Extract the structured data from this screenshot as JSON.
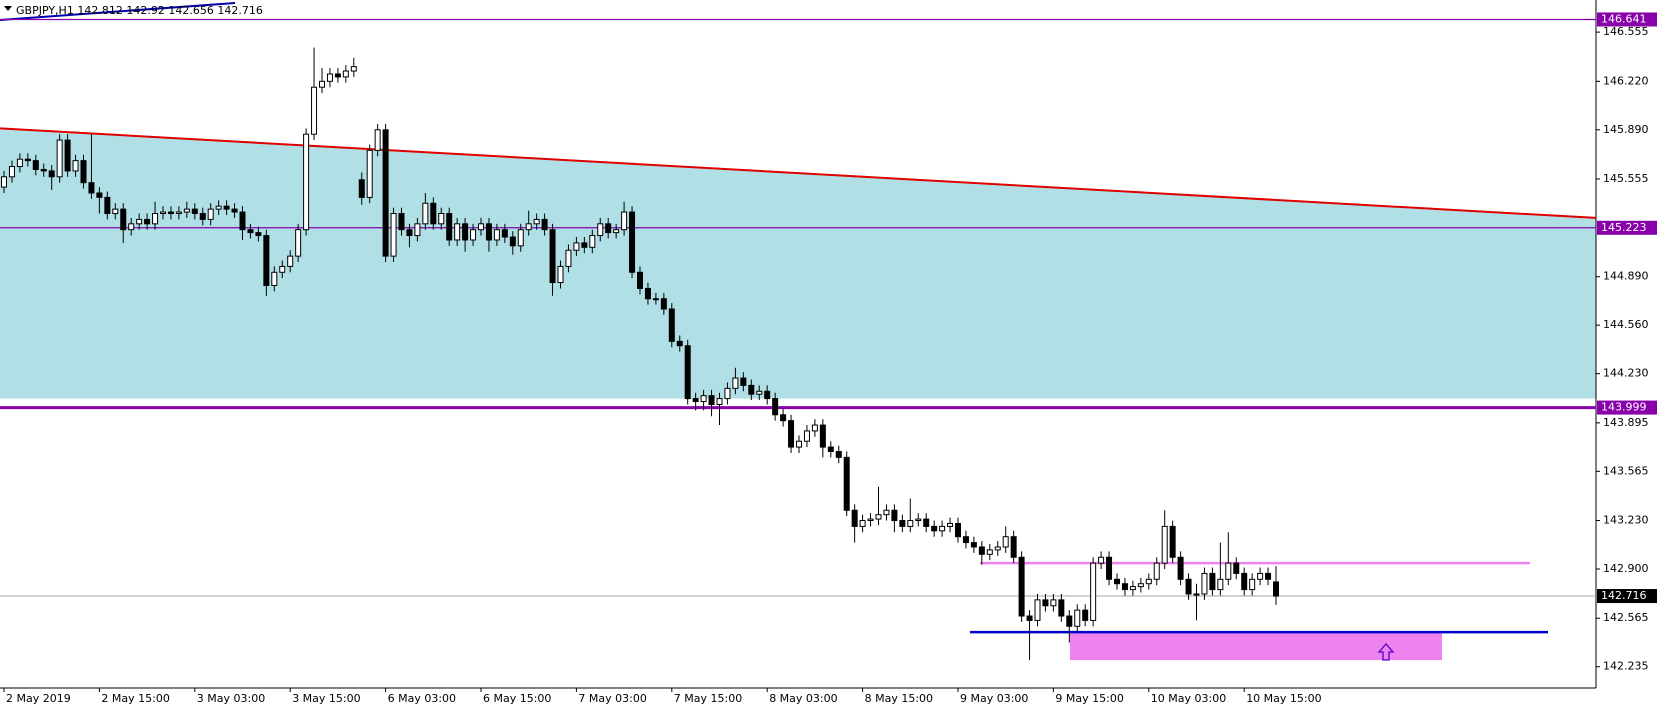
{
  "chart_data": {
    "type": "candlestick",
    "symbol": "GBPJPY,H1",
    "ylim": [
      142.09,
      146.76
    ],
    "yticks": [
      146.555,
      {
        "value": 146.22,
        "label": "146.220"
      },
      {
        "value": 145.89,
        "label": "145.890"
      },
      145.555,
      {
        "value": 144.89,
        "label": "144.890"
      },
      {
        "value": 144.56,
        "label": "144.560"
      },
      {
        "value": 144.23,
        "label": "144.230"
      },
      143.895,
      143.565,
      {
        "value": 143.23,
        "label": "143.230"
      },
      {
        "value": 142.9,
        "label": "142.900"
      },
      142.565,
      142.235
    ],
    "time_labels": [
      "2 May 2019",
      "2 May 15:00",
      "3 May 03:00",
      "3 May 15:00",
      "6 May 03:00",
      "6 May 15:00",
      "7 May 03:00",
      "7 May 15:00",
      "8 May 03:00",
      "8 May 15:00",
      "9 May 03:00",
      "9 May 15:00",
      "10 May 03:00",
      "10 May 15:00"
    ],
    "open": [
      145.5,
      145.57,
      145.64,
      145.69,
      145.68,
      145.62,
      145.61,
      145.57,
      145.82,
      145.61,
      145.68,
      145.53,
      145.46,
      145.43,
      145.32,
      145.35,
      145.21,
      145.25,
      145.28,
      145.25,
      145.32,
      145.33,
      145.32,
      145.33,
      145.35,
      145.32,
      145.28,
      145.35,
      145.37,
      145.35,
      145.33,
      145.21,
      145.19,
      145.17,
      144.83,
      144.92,
      144.96,
      145.03,
      145.21,
      145.86,
      146.18,
      146.22,
      146.27,
      146.25,
      146.29,
      145.55,
      145.43,
      145.75,
      145.89,
      145.03,
      145.32,
      145.21,
      145.17,
      145.25,
      145.39,
      145.25,
      145.32,
      145.14,
      145.25,
      145.14,
      145.21,
      145.25,
      145.14,
      145.21,
      145.16,
      145.1,
      145.21,
      145.25,
      145.28,
      145.21,
      144.85,
      144.96,
      145.07,
      145.12,
      145.09,
      145.17,
      145.25,
      145.19,
      145.21,
      145.33,
      144.92,
      144.81,
      144.74,
      144.74,
      144.67,
      144.45,
      144.42,
      144.06,
      144.04,
      144.08,
      144.02,
      144.06,
      144.13,
      144.2,
      144.15,
      144.09,
      144.11,
      144.06,
      143.95,
      143.91,
      143.73,
      143.77,
      143.84,
      143.88,
      143.73,
      143.7,
      143.66,
      143.3,
      143.19,
      143.23,
      143.24,
      143.27,
      143.3,
      143.23,
      143.19,
      143.23,
      143.24,
      143.19,
      143.16,
      143.19,
      143.21,
      143.12,
      143.08,
      143.05,
      143.0,
      143.03,
      143.05,
      143.12,
      142.98,
      142.58,
      142.55,
      142.69,
      142.65,
      142.69,
      142.58,
      142.51,
      142.62,
      142.55,
      142.94,
      142.98,
      142.83,
      142.8,
      142.76,
      142.78,
      142.8,
      142.83,
      142.94,
      143.19,
      142.98,
      142.83,
      142.73,
      142.73,
      142.87,
      142.76,
      142.83,
      142.94,
      142.87,
      142.76,
      142.83,
      142.87,
      142.812
    ],
    "high": [
      145.61,
      145.68,
      145.73,
      145.73,
      145.72,
      145.66,
      145.65,
      145.86,
      145.86,
      145.72,
      145.72,
      145.86,
      145.5,
      145.47,
      145.39,
      145.39,
      145.29,
      145.32,
      145.32,
      145.4,
      145.37,
      145.37,
      145.37,
      145.4,
      145.39,
      145.36,
      145.39,
      145.41,
      145.41,
      145.39,
      145.37,
      145.25,
      145.23,
      145.21,
      144.96,
      145.0,
      145.07,
      145.25,
      145.9,
      146.45,
      146.31,
      146.31,
      146.31,
      146.33,
      146.38,
      145.6,
      145.79,
      145.93,
      145.93,
      145.36,
      145.36,
      145.25,
      145.29,
      145.46,
      145.43,
      145.36,
      145.36,
      145.29,
      145.29,
      145.25,
      145.29,
      145.29,
      145.25,
      145.25,
      145.2,
      145.25,
      145.34,
      145.32,
      145.32,
      145.25,
      145.0,
      145.11,
      145.16,
      145.16,
      145.21,
      145.29,
      145.29,
      145.25,
      145.4,
      145.37,
      144.96,
      144.85,
      144.78,
      144.78,
      144.71,
      144.49,
      144.46,
      144.1,
      144.12,
      144.12,
      144.1,
      144.17,
      144.27,
      144.24,
      144.19,
      144.15,
      144.15,
      144.1,
      143.99,
      143.95,
      143.81,
      143.88,
      143.92,
      143.92,
      143.77,
      143.74,
      143.7,
      143.34,
      143.27,
      143.28,
      143.46,
      143.34,
      143.34,
      143.27,
      143.38,
      143.28,
      143.28,
      143.23,
      143.23,
      143.25,
      143.25,
      143.16,
      143.12,
      143.09,
      143.07,
      143.09,
      143.19,
      143.16,
      143.02,
      142.62,
      142.73,
      142.73,
      142.73,
      142.73,
      142.62,
      142.66,
      142.66,
      142.98,
      143.02,
      143.02,
      142.87,
      142.84,
      142.82,
      142.84,
      142.87,
      142.98,
      143.3,
      143.23,
      143.02,
      142.87,
      142.8,
      142.91,
      142.91,
      143.08,
      143.15,
      142.98,
      142.91,
      142.87,
      142.91,
      142.91,
      142.92
    ],
    "low": [
      145.46,
      145.53,
      145.6,
      145.64,
      145.58,
      145.57,
      145.48,
      145.53,
      145.57,
      145.57,
      145.49,
      145.42,
      145.32,
      145.28,
      145.28,
      145.12,
      145.17,
      145.21,
      145.21,
      145.21,
      145.28,
      145.28,
      145.28,
      145.29,
      145.28,
      145.24,
      145.24,
      145.31,
      145.31,
      145.29,
      145.14,
      145.15,
      145.13,
      144.76,
      144.79,
      144.88,
      144.92,
      144.99,
      145.17,
      145.82,
      146.14,
      146.18,
      146.21,
      146.21,
      146.25,
      145.38,
      145.39,
      145.71,
      144.99,
      144.99,
      145.17,
      145.09,
      145.13,
      145.21,
      145.21,
      145.21,
      145.1,
      145.1,
      145.06,
      145.1,
      145.17,
      145.06,
      145.1,
      145.12,
      145.04,
      145.06,
      145.17,
      145.21,
      145.17,
      144.76,
      144.81,
      144.92,
      145.03,
      145.05,
      145.05,
      145.13,
      145.15,
      145.15,
      145.17,
      144.88,
      144.77,
      144.7,
      144.7,
      144.63,
      144.41,
      144.38,
      144.02,
      143.98,
      143.98,
      143.94,
      143.88,
      144.02,
      144.09,
      144.11,
      144.05,
      144.05,
      144.02,
      143.91,
      143.87,
      143.69,
      143.69,
      143.73,
      143.8,
      143.66,
      143.66,
      143.62,
      143.26,
      143.08,
      143.15,
      143.19,
      143.2,
      143.23,
      143.15,
      143.15,
      143.15,
      143.19,
      143.15,
      143.12,
      143.12,
      143.15,
      143.08,
      143.04,
      143.01,
      142.93,
      142.96,
      142.99,
      143.01,
      142.94,
      142.54,
      142.28,
      142.51,
      142.61,
      142.61,
      142.54,
      142.4,
      142.47,
      142.51,
      142.51,
      142.9,
      142.79,
      142.76,
      142.72,
      142.72,
      142.74,
      142.76,
      142.79,
      142.9,
      142.94,
      142.79,
      142.69,
      142.55,
      142.69,
      142.72,
      142.72,
      142.79,
      142.83,
      142.72,
      142.72,
      142.79,
      142.79,
      142.656
    ],
    "close": [
      145.57,
      145.64,
      145.69,
      145.68,
      145.62,
      145.61,
      145.57,
      145.82,
      145.61,
      145.68,
      145.53,
      145.46,
      145.43,
      145.32,
      145.35,
      145.21,
      145.25,
      145.28,
      145.25,
      145.32,
      145.33,
      145.32,
      145.33,
      145.35,
      145.32,
      145.28,
      145.35,
      145.37,
      145.35,
      145.33,
      145.21,
      145.19,
      145.17,
      144.83,
      144.92,
      144.96,
      145.03,
      145.21,
      145.86,
      146.18,
      146.22,
      146.27,
      146.25,
      146.29,
      146.32,
      145.43,
      145.75,
      145.89,
      145.03,
      145.32,
      145.21,
      145.17,
      145.25,
      145.39,
      145.25,
      145.32,
      145.14,
      145.25,
      145.14,
      145.21,
      145.25,
      145.14,
      145.21,
      145.16,
      145.1,
      145.21,
      145.25,
      145.28,
      145.21,
      144.85,
      144.96,
      145.07,
      145.12,
      145.09,
      145.17,
      145.25,
      145.19,
      145.21,
      145.33,
      144.92,
      144.81,
      144.74,
      144.74,
      144.67,
      144.45,
      144.42,
      144.06,
      144.04,
      144.08,
      144.02,
      144.06,
      144.13,
      144.2,
      144.15,
      144.09,
      144.11,
      144.06,
      143.95,
      143.91,
      143.73,
      143.77,
      143.84,
      143.88,
      143.73,
      143.7,
      143.66,
      143.3,
      143.19,
      143.23,
      143.24,
      143.27,
      143.3,
      143.23,
      143.19,
      143.23,
      143.24,
      143.19,
      143.16,
      143.19,
      143.21,
      143.12,
      143.08,
      143.05,
      143.0,
      143.03,
      143.05,
      143.12,
      142.98,
      142.58,
      142.55,
      142.69,
      142.65,
      142.69,
      142.58,
      142.51,
      142.62,
      142.55,
      142.94,
      142.98,
      142.83,
      142.8,
      142.76,
      142.78,
      142.8,
      142.83,
      142.94,
      143.19,
      142.98,
      142.83,
      142.73,
      142.73,
      142.87,
      142.76,
      142.83,
      142.94,
      142.87,
      142.76,
      142.83,
      142.87,
      142.83,
      142.716
    ],
    "levels": [
      {
        "value": 146.641,
        "color": "#8800aa"
      },
      {
        "value": 145.223,
        "color": "#8800aa"
      },
      {
        "value": 143.999,
        "color": "#8800aa"
      }
    ],
    "trendline": {
      "color": "#e00000",
      "start": 145.9,
      "end": 145.29
    },
    "zone": {
      "color": "#b0e0e6",
      "bottom": 144.06
    },
    "pink_line": {
      "color": "#ee82ee",
      "value": 142.94
    },
    "blue_line": {
      "color": "#0000cc",
      "value": 142.47
    },
    "pink_box": {
      "color": "#ee82ee",
      "top": 142.47,
      "bottom": 142.28
    }
  }
}
